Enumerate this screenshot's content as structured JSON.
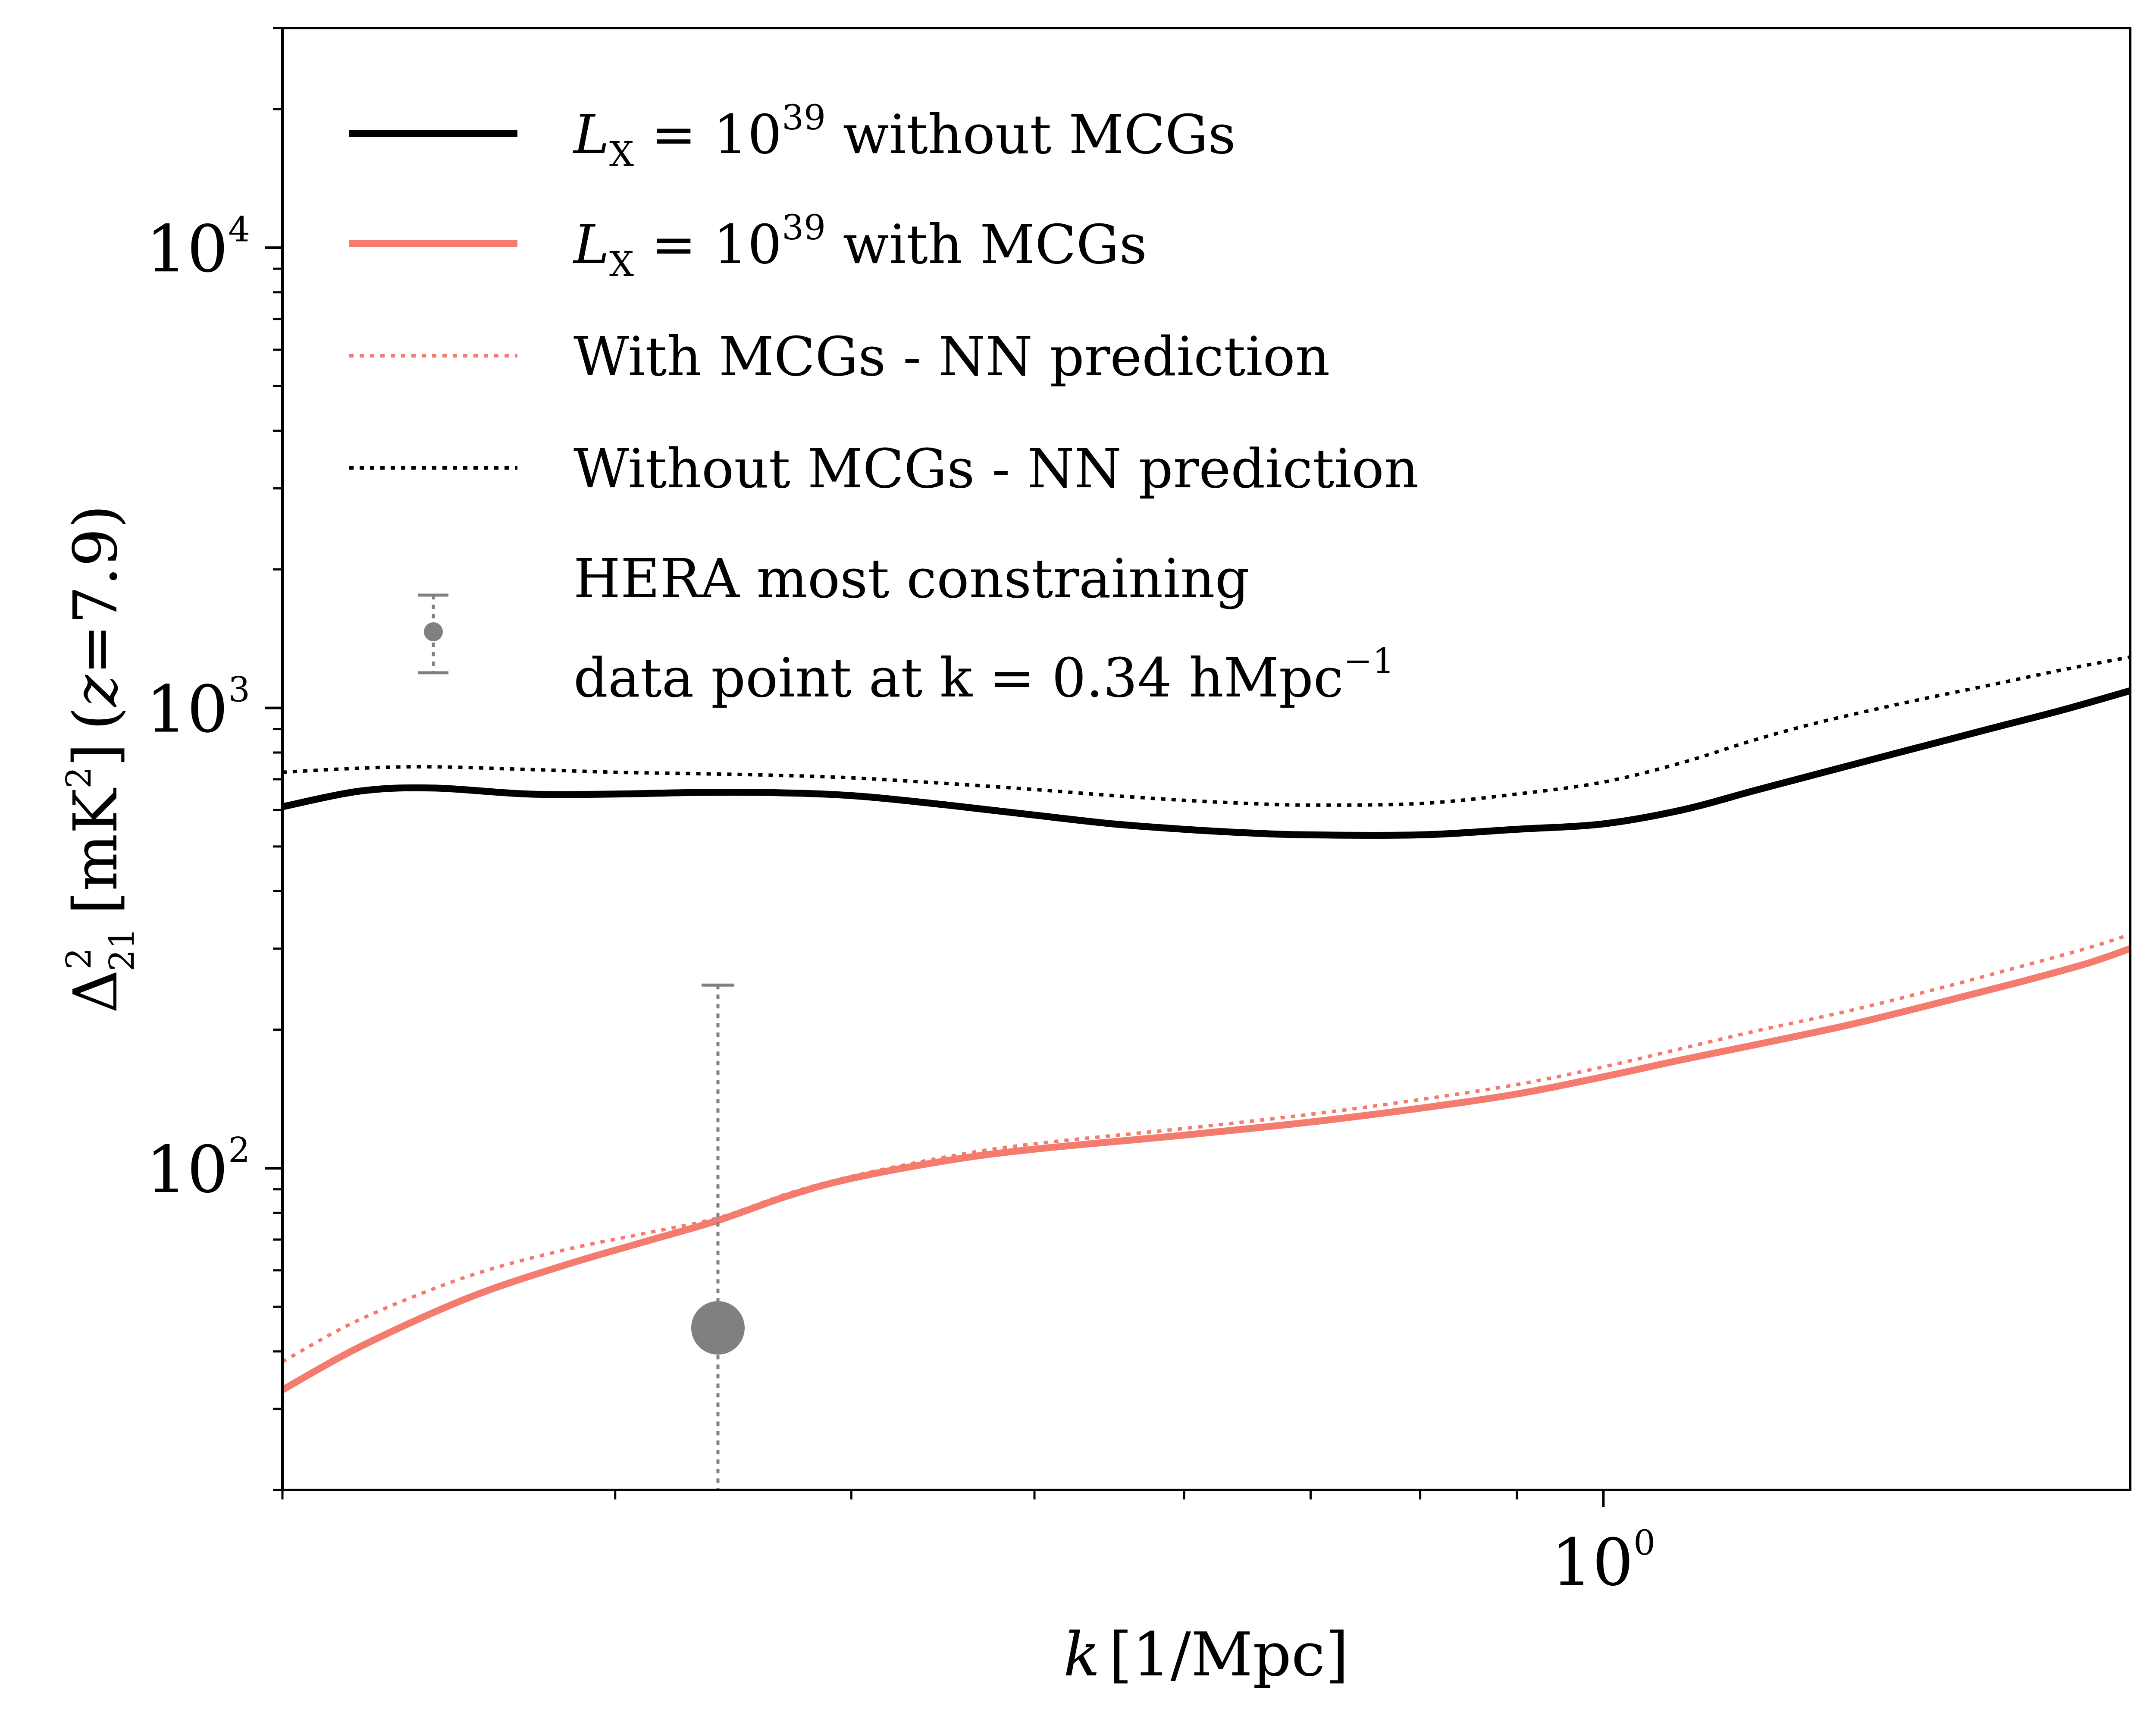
{
  "chart_data": {
    "type": "line",
    "xlabel": {
      "var": "k",
      "unit": "[1/Mpc]"
    },
    "ylabel": {
      "base": "Δ",
      "sup": "2",
      "sub": "21",
      "unit_pre": "[mK",
      "unit_sup": "2",
      "unit_post": "]",
      "cond_open": "(",
      "cond_var": "z",
      "cond_value": "=7.9)"
    },
    "x_scale": "log",
    "y_scale": "log",
    "xlim": [
      0.2,
      1.9
    ],
    "ylim": [
      20,
      30000
    ],
    "x_ticks": [
      {
        "value": 1.0,
        "base": "10",
        "exp": "0"
      }
    ],
    "y_ticks": [
      {
        "value": 100,
        "base": "10",
        "exp": "2"
      },
      {
        "value": 1000,
        "base": "10",
        "exp": "3"
      },
      {
        "value": 10000,
        "base": "10",
        "exp": "4"
      }
    ],
    "grid": false,
    "legend_position": "top-left",
    "series": [
      {
        "name": {
          "lx_var": "L",
          "lx_sub": "X",
          "eq": " = ",
          "base": "10",
          "exp": "39",
          "tail": " without MCGs"
        },
        "color": "#000000",
        "style": "solid",
        "x": [
          0.2,
          0.22,
          0.24,
          0.27,
          0.3,
          0.33,
          0.36,
          0.4,
          0.45,
          0.5,
          0.55,
          0.6,
          0.65,
          0.7,
          0.8,
          0.9,
          1.0,
          1.1,
          1.2,
          1.3,
          1.45,
          1.6,
          1.75,
          1.9
        ],
        "y": [
          610,
          660,
          670,
          650,
          650,
          655,
          655,
          645,
          615,
          585,
          560,
          545,
          535,
          530,
          530,
          545,
          560,
          600,
          660,
          720,
          810,
          900,
          990,
          1090
        ]
      },
      {
        "name": {
          "lx_var": "L",
          "lx_sub": "X",
          "eq": " = ",
          "base": "10",
          "exp": "39",
          "tail": " with MCGs"
        },
        "color": "#f47c6e",
        "style": "solid",
        "x": [
          0.2,
          0.22,
          0.25,
          0.28,
          0.31,
          0.34,
          0.37,
          0.4,
          0.45,
          0.5,
          0.6,
          0.7,
          0.8,
          0.9,
          1.0,
          1.1,
          1.2,
          1.35,
          1.5,
          1.65,
          1.8,
          1.9
        ],
        "y": [
          33,
          41,
          52,
          61,
          69,
          77,
          87,
          95,
          104,
          110,
          118,
          126,
          135,
          145,
          158,
          172,
          185,
          205,
          228,
          252,
          278,
          300
        ]
      },
      {
        "name": "With MCGs - NN prediction",
        "color": "#f47c6e",
        "style": "dotted",
        "x": [
          0.2,
          0.22,
          0.25,
          0.28,
          0.31,
          0.34,
          0.37,
          0.4,
          0.45,
          0.5,
          0.6,
          0.7,
          0.8,
          0.9,
          1.0,
          1.1,
          1.2,
          1.35,
          1.5,
          1.65,
          1.8,
          1.9
        ],
        "y": [
          38,
          47,
          58,
          66,
          72,
          78,
          88,
          96,
          106,
          113,
          122,
          131,
          141,
          152,
          166,
          182,
          198,
          220,
          245,
          272,
          300,
          322
        ]
      },
      {
        "name": "Without MCGs - NN prediction",
        "color": "#000000",
        "style": "dotted",
        "x": [
          0.2,
          0.22,
          0.24,
          0.27,
          0.3,
          0.33,
          0.36,
          0.4,
          0.45,
          0.5,
          0.55,
          0.6,
          0.65,
          0.7,
          0.8,
          0.9,
          1.0,
          1.1,
          1.2,
          1.3,
          1.45,
          1.6,
          1.75,
          1.9
        ],
        "y": [
          725,
          740,
          745,
          735,
          725,
          720,
          715,
          705,
          685,
          665,
          645,
          630,
          620,
          615,
          620,
          650,
          690,
          760,
          850,
          930,
          1030,
          1120,
          1210,
          1290
        ]
      }
    ],
    "errorbar": {
      "name_line1": "HERA most constraining",
      "name_line2_pre": "data point at k = 0.34 hMpc",
      "name_line2_sup": "−1",
      "x": 0.34,
      "y": 45,
      "yerr_low": 20,
      "yerr_high": 250,
      "color": "#808080"
    }
  }
}
